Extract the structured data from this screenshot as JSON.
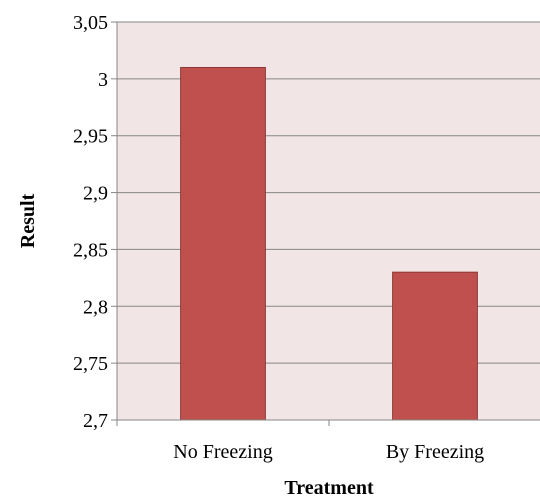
{
  "chart_data": {
    "type": "bar",
    "categories": [
      "No Freezing",
      "By Freezing"
    ],
    "values": [
      3.01,
      2.83
    ],
    "xlabel": "Treatment",
    "ylabel": "Result",
    "ylim": [
      2.7,
      3.05
    ],
    "yticks": [
      "2,7",
      "2,75",
      "2,8",
      "2,85",
      "2,9",
      "2,95",
      "3",
      "3,05"
    ],
    "grid": true,
    "legend": "none",
    "colors": {
      "bar_fill": "#c0504d",
      "bar_stroke": "#8c3836",
      "plot_background": "#f2e5e5",
      "gridline": "#868686",
      "axis": "#868686"
    }
  }
}
